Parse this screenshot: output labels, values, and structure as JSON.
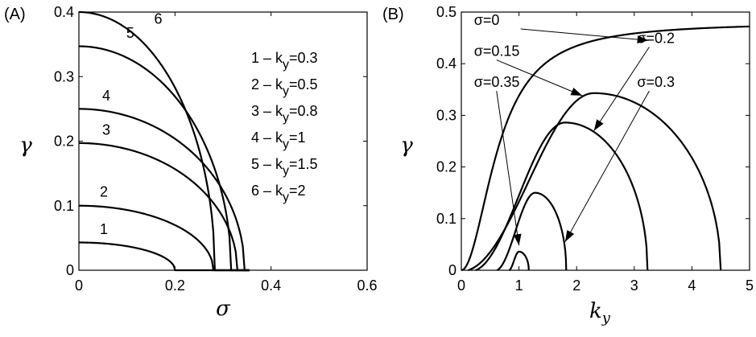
{
  "chart_data": [
    {
      "type": "line",
      "panel_label": "(A)",
      "xlabel": "σ",
      "ylabel": "γ",
      "xlim": [
        0,
        0.6
      ],
      "ylim": [
        0,
        0.4
      ],
      "xticks": [
        "0",
        "0.2",
        "0.4",
        "0.6"
      ],
      "yticks": [
        "0",
        "0.1",
        "0.2",
        "0.3",
        "0.4"
      ],
      "legend_placement": "top-right",
      "legend": [
        {
          "num": "1",
          "text": "k",
          "sub": "y",
          "val": "=0.3"
        },
        {
          "num": "2",
          "text": "k",
          "sub": "y",
          "val": "=0.5"
        },
        {
          "num": "3",
          "text": "k",
          "sub": "y",
          "val": "=0.8"
        },
        {
          "num": "4",
          "text": "k",
          "sub": "y",
          "val": "=1"
        },
        {
          "num": "5",
          "text": "k",
          "sub": "y",
          "val": "=1.5"
        },
        {
          "num": "6",
          "text": "k",
          "sub": "y",
          "val": "=2"
        }
      ],
      "series": [
        {
          "label": "1",
          "gamma0": 0.043,
          "sigma_max": 0.2,
          "label_at": [
            0.052,
            0.056
          ]
        },
        {
          "label": "2",
          "gamma0": 0.1,
          "sigma_max": 0.28,
          "label_at": [
            0.052,
            0.114
          ]
        },
        {
          "label": "3",
          "gamma0": 0.197,
          "sigma_max": 0.33,
          "label_at": [
            0.057,
            0.21
          ]
        },
        {
          "label": "4",
          "gamma0": 0.25,
          "sigma_max": 0.345,
          "label_at": [
            0.057,
            0.263
          ]
        },
        {
          "label": "5",
          "gamma0": 0.347,
          "sigma_max": 0.317,
          "label_at": [
            0.107,
            0.36
          ]
        },
        {
          "label": "6",
          "gamma0": 0.4,
          "sigma_max": 0.283,
          "label_at": [
            0.165,
            0.382
          ]
        }
      ]
    },
    {
      "type": "line",
      "panel_label": "(B)",
      "xlabel": "k",
      "xlabel_sub": "y",
      "ylabel": "γ",
      "xlim": [
        0,
        5
      ],
      "ylim": [
        0,
        0.5
      ],
      "xticks": [
        "0",
        "1",
        "2",
        "3",
        "4",
        "5"
      ],
      "yticks": [
        "0",
        "0.1",
        "0.2",
        "0.3",
        "0.4",
        "0.5"
      ],
      "series": [
        {
          "name": "σ=0",
          "k_min": 0,
          "k_max": 5,
          "peak_k": 5,
          "peak_gamma": 0.48
        },
        {
          "name": "σ=0.15",
          "k_min": 0.12,
          "k_max": 4.5,
          "peak_k": 2.3,
          "peak_gamma": 0.343
        },
        {
          "name": "σ=0.2",
          "k_min": 0.25,
          "k_max": 3.23,
          "peak_k": 1.8,
          "peak_gamma": 0.286
        },
        {
          "name": "σ=0.3",
          "k_min": 0.62,
          "k_max": 1.82,
          "peak_k": 1.28,
          "peak_gamma": 0.15
        },
        {
          "name": "σ=0.35",
          "k_min": 0.83,
          "k_max": 1.17,
          "peak_k": 1.0,
          "peak_gamma": 0.036
        }
      ],
      "annotations": [
        {
          "text": "σ=0",
          "text_at": [
            0.22,
            0.475
          ],
          "arrow_to": [
            3.25,
            0.445
          ]
        },
        {
          "text": "σ=0.15",
          "text_at": [
            0.22,
            0.415
          ],
          "arrow_to": [
            2.1,
            0.338
          ]
        },
        {
          "text": "σ=0.35",
          "text_at": [
            0.22,
            0.355
          ],
          "arrow_to": [
            1.0,
            0.048
          ]
        },
        {
          "text": "σ=0.2",
          "text_at": [
            3.05,
            0.44
          ],
          "arrow_to": [
            2.3,
            0.27
          ]
        },
        {
          "text": "σ=0.3",
          "text_at": [
            3.05,
            0.355
          ],
          "arrow_to": [
            1.8,
            0.055
          ]
        }
      ]
    }
  ]
}
